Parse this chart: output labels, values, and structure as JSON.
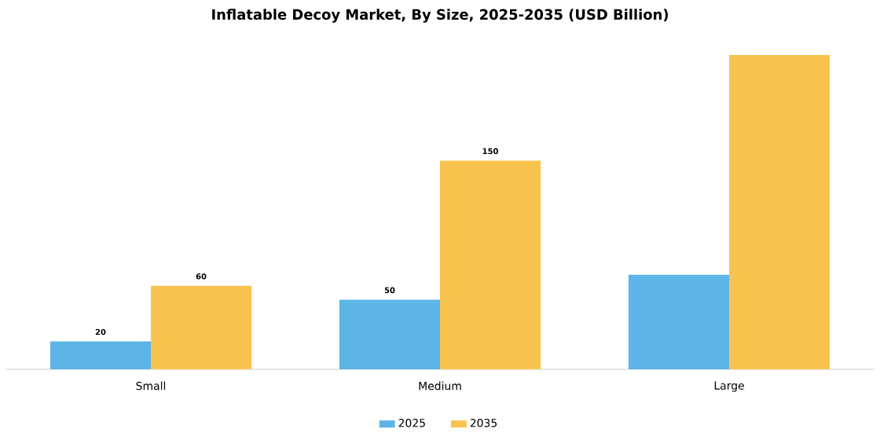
{
  "chart_data": {
    "type": "bar",
    "title": "Inflatable Decoy Market, By Size, 2025-2035 (USD Billion)",
    "categories": [
      "Small",
      "Medium",
      "Large"
    ],
    "series": [
      {
        "name": "2025",
        "color": "#5db4e6",
        "values": [
          20,
          50,
          68
        ],
        "value_labels": [
          "20",
          "50",
          null
        ]
      },
      {
        "name": "2035",
        "color": "#f8c44f",
        "values": [
          60,
          150,
          226
        ],
        "value_labels": [
          "60",
          "150",
          null
        ]
      }
    ],
    "legend": "bottom"
  }
}
